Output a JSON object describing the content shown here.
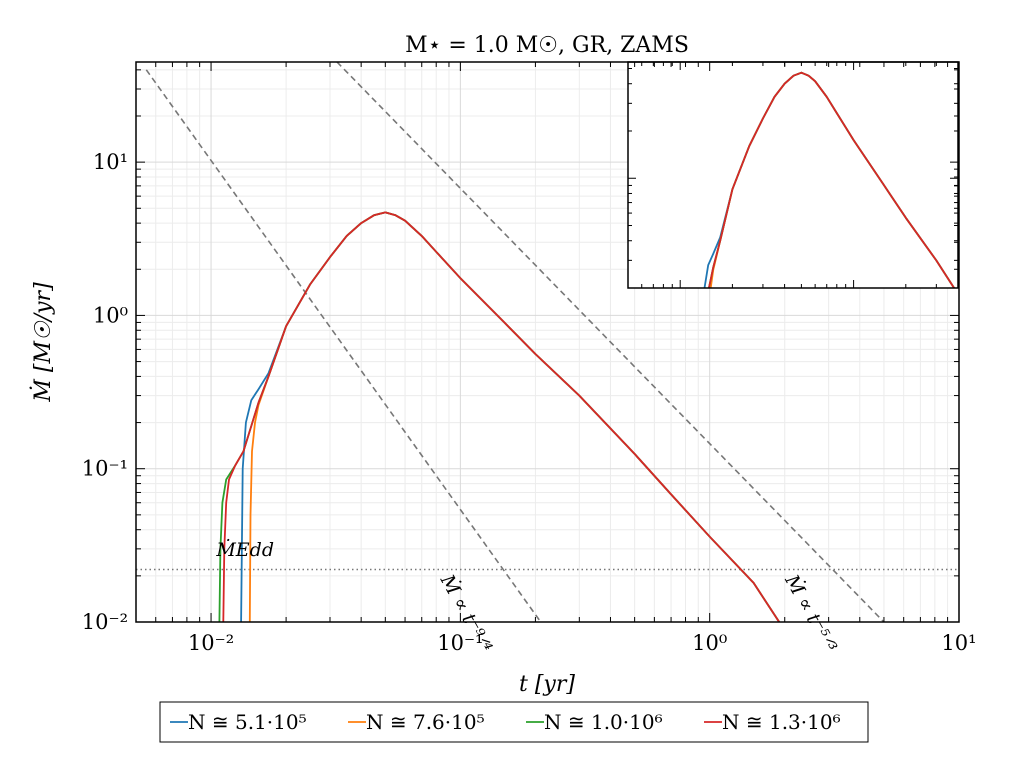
{
  "chart_data": {
    "type": "line",
    "title": "M⋆ = 1.0 M☉, GR, ZAMS",
    "xlabel": "t [yr]",
    "ylabel": "Ṁ [M☉/yr]",
    "x_scale": "log",
    "y_scale": "log",
    "xlim": [
      0.005,
      10
    ],
    "ylim": [
      0.01,
      45
    ],
    "x_ticks": [
      {
        "value": 0.01,
        "label": "10⁻²"
      },
      {
        "value": 0.1,
        "label": "10⁻¹"
      },
      {
        "value": 1,
        "label": "10⁰"
      },
      {
        "value": 10,
        "label": "10¹"
      }
    ],
    "y_ticks": [
      {
        "value": 0.01,
        "label": "10⁻²"
      },
      {
        "value": 0.1,
        "label": "10⁻¹"
      },
      {
        "value": 1,
        "label": "10⁰"
      },
      {
        "value": 10,
        "label": "10¹"
      }
    ],
    "grid": true,
    "legend_position": "bottom, outside",
    "colors": {
      "blue": "#1f77b4",
      "orange": "#ff7f0e",
      "green": "#2ca02c",
      "red": "#d62728",
      "reference": "#777777"
    },
    "series": [
      {
        "name": "N ≅ 5.1·10⁵",
        "color": "#1f77b4",
        "x": [
          0.0132,
          0.0134,
          0.0138,
          0.0145,
          0.0155,
          0.017,
          0.02,
          0.025,
          0.03,
          0.035,
          0.04,
          0.045,
          0.05,
          0.055,
          0.06,
          0.07,
          0.08,
          0.1,
          0.15,
          0.2,
          0.3,
          0.5,
          0.7,
          1.0,
          1.5,
          1.9
        ],
        "y": [
          0.01,
          0.1,
          0.2,
          0.28,
          0.33,
          0.42,
          0.85,
          1.6,
          2.4,
          3.3,
          4.0,
          4.5,
          4.7,
          4.5,
          4.15,
          3.3,
          2.6,
          1.75,
          0.9,
          0.56,
          0.3,
          0.125,
          0.068,
          0.036,
          0.018,
          0.01
        ]
      },
      {
        "name": "N ≅ 7.6·10⁵",
        "color": "#ff7f0e",
        "x": [
          0.0143,
          0.0144,
          0.0146,
          0.015,
          0.0155,
          0.017,
          0.02,
          0.025,
          0.03,
          0.035,
          0.04,
          0.045,
          0.05,
          0.055,
          0.06,
          0.07,
          0.08,
          0.1,
          0.15,
          0.2,
          0.3,
          0.5,
          0.7,
          1.0,
          1.5,
          1.9
        ],
        "y": [
          0.01,
          0.05,
          0.13,
          0.2,
          0.26,
          0.4,
          0.85,
          1.6,
          2.4,
          3.3,
          4.0,
          4.5,
          4.7,
          4.5,
          4.15,
          3.3,
          2.6,
          1.75,
          0.9,
          0.56,
          0.3,
          0.125,
          0.068,
          0.036,
          0.018,
          0.01
        ]
      },
      {
        "name": "N ≅ 1.0·10⁶",
        "color": "#2ca02c",
        "x": [
          0.0108,
          0.0109,
          0.0111,
          0.0115,
          0.0125,
          0.0135,
          0.0145,
          0.0155,
          0.017,
          0.02,
          0.025,
          0.03,
          0.035,
          0.04,
          0.045,
          0.05,
          0.055,
          0.06,
          0.07,
          0.08,
          0.1,
          0.15,
          0.2,
          0.3,
          0.5,
          0.7,
          1.0,
          1.5,
          1.9
        ],
        "y": [
          0.01,
          0.03,
          0.06,
          0.085,
          0.105,
          0.13,
          0.19,
          0.27,
          0.4,
          0.85,
          1.6,
          2.4,
          3.3,
          4.0,
          4.5,
          4.7,
          4.5,
          4.15,
          3.3,
          2.6,
          1.75,
          0.9,
          0.56,
          0.3,
          0.125,
          0.068,
          0.036,
          0.018,
          0.01
        ]
      },
      {
        "name": "N ≅ 1.3·10⁶",
        "color": "#d62728",
        "x": [
          0.0112,
          0.0113,
          0.0115,
          0.0118,
          0.0125,
          0.0135,
          0.0145,
          0.0155,
          0.017,
          0.02,
          0.025,
          0.03,
          0.035,
          0.04,
          0.045,
          0.05,
          0.055,
          0.06,
          0.07,
          0.08,
          0.1,
          0.15,
          0.2,
          0.3,
          0.5,
          0.7,
          1.0,
          1.5,
          1.9
        ],
        "y": [
          0.01,
          0.03,
          0.06,
          0.085,
          0.105,
          0.13,
          0.19,
          0.27,
          0.4,
          0.85,
          1.6,
          2.4,
          3.3,
          4.0,
          4.5,
          4.7,
          4.5,
          4.15,
          3.3,
          2.6,
          1.75,
          0.9,
          0.56,
          0.3,
          0.125,
          0.068,
          0.036,
          0.018,
          0.01
        ]
      }
    ],
    "reference_lines": [
      {
        "name": "power-law-9-4",
        "style": "dashed",
        "x": [
          0.0055,
          0.21
        ],
        "y": [
          40,
          0.01
        ]
      },
      {
        "name": "power-law-5-3",
        "style": "dashed",
        "x": [
          0.032,
          5.0
        ],
        "y": [
          45,
          0.01
        ]
      },
      {
        "name": "eddington",
        "style": "dotted",
        "x": [
          0.005,
          10
        ],
        "y": [
          0.022,
          0.022
        ]
      }
    ],
    "annotations": [
      {
        "name": "eddington-label",
        "text": "ṀEdd",
        "x": 0.0105,
        "y": 0.027
      },
      {
        "name": "slope-9-4-label",
        "text": "Ṁ ∝ t⁻⁹ᐟ⁴",
        "x": 0.083,
        "y": 0.019
      },
      {
        "name": "slope-5-3-label",
        "text": "Ṁ ∝ t⁻⁵ᐟ³",
        "x": 2.0,
        "y": 0.019
      }
    ],
    "inset": {
      "type": "line",
      "xlim": [
        0.005,
        0.4
      ],
      "ylim": [
        0.2,
        5.5
      ],
      "x_scale": "log",
      "y_scale": "log",
      "tick_labels_visible": false
    }
  }
}
